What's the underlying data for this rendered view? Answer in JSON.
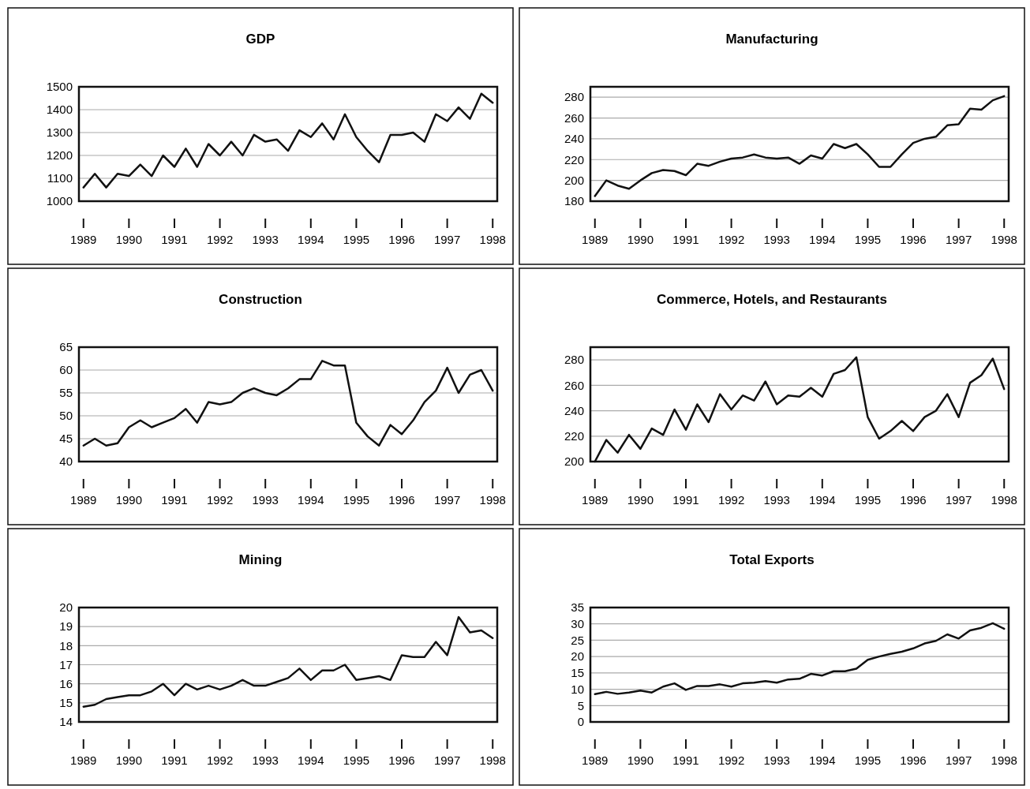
{
  "chart_data": [
    {
      "type": "line",
      "title": "GDP",
      "x": [
        1989,
        1989.25,
        1989.5,
        1989.75,
        1990,
        1990.25,
        1990.5,
        1990.75,
        1991,
        1991.25,
        1991.5,
        1991.75,
        1992,
        1992.25,
        1992.5,
        1992.75,
        1993,
        1993.25,
        1993.5,
        1993.75,
        1994,
        1994.25,
        1994.5,
        1994.75,
        1995,
        1995.25,
        1995.5,
        1995.75,
        1996,
        1996.25,
        1996.5,
        1996.75,
        1997,
        1997.25,
        1997.5,
        1997.75,
        1998
      ],
      "xlim": [
        1988.9,
        1998.1
      ],
      "xticks": [
        1989,
        1990,
        1991,
        1992,
        1993,
        1994,
        1995,
        1996,
        1997,
        1998
      ],
      "ylim": [
        1000,
        1500
      ],
      "yticks": [
        1000,
        1100,
        1200,
        1300,
        1400,
        1500
      ],
      "grid": "y",
      "legend": false,
      "marker": "none",
      "line_style": "solid",
      "series": [
        {
          "color": "#111111",
          "values": [
            1060,
            1120,
            1060,
            1120,
            1110,
            1160,
            1110,
            1200,
            1150,
            1230,
            1150,
            1250,
            1200,
            1260,
            1200,
            1290,
            1260,
            1270,
            1220,
            1310,
            1280,
            1340,
            1270,
            1380,
            1280,
            1220,
            1170,
            1290,
            1290,
            1300,
            1260,
            1380,
            1350,
            1410,
            1360,
            1470,
            1430
          ]
        }
      ]
    },
    {
      "type": "line",
      "title": "Manufacturing",
      "x": [
        1989,
        1989.25,
        1989.5,
        1989.75,
        1990,
        1990.25,
        1990.5,
        1990.75,
        1991,
        1991.25,
        1991.5,
        1991.75,
        1992,
        1992.25,
        1992.5,
        1992.75,
        1993,
        1993.25,
        1993.5,
        1993.75,
        1994,
        1994.25,
        1994.5,
        1994.75,
        1995,
        1995.25,
        1995.5,
        1995.75,
        1996,
        1996.25,
        1996.5,
        1996.75,
        1997,
        1997.25,
        1997.5,
        1997.75,
        1998
      ],
      "xlim": [
        1988.9,
        1998.1
      ],
      "xticks": [
        1989,
        1990,
        1991,
        1992,
        1993,
        1994,
        1995,
        1996,
        1997,
        1998
      ],
      "ylim": [
        180,
        290
      ],
      "yticks": [
        180,
        200,
        220,
        240,
        260,
        280
      ],
      "grid": "y",
      "legend": false,
      "marker": "none",
      "line_style": "solid",
      "series": [
        {
          "color": "#111111",
          "values": [
            185,
            200,
            195,
            192,
            200,
            207,
            210,
            209,
            205,
            216,
            214,
            218,
            221,
            222,
            225,
            222,
            221,
            222,
            216,
            224,
            221,
            235,
            231,
            235,
            225,
            213,
            213,
            225,
            236,
            240,
            242,
            253,
            254,
            269,
            268,
            277,
            281
          ]
        }
      ]
    },
    {
      "type": "line",
      "title": "Construction",
      "x": [
        1989,
        1989.25,
        1989.5,
        1989.75,
        1990,
        1990.25,
        1990.5,
        1990.75,
        1991,
        1991.25,
        1991.5,
        1991.75,
        1992,
        1992.25,
        1992.5,
        1992.75,
        1993,
        1993.25,
        1993.5,
        1993.75,
        1994,
        1994.25,
        1994.5,
        1994.75,
        1995,
        1995.25,
        1995.5,
        1995.75,
        1996,
        1996.25,
        1996.5,
        1996.75,
        1997,
        1997.25,
        1997.5,
        1997.75,
        1998
      ],
      "xlim": [
        1988.9,
        1998.1
      ],
      "xticks": [
        1989,
        1990,
        1991,
        1992,
        1993,
        1994,
        1995,
        1996,
        1997,
        1998
      ],
      "ylim": [
        40,
        65
      ],
      "yticks": [
        40,
        45,
        50,
        55,
        60,
        65
      ],
      "grid": "y",
      "legend": false,
      "marker": "none",
      "line_style": "solid",
      "series": [
        {
          "color": "#111111",
          "values": [
            43.5,
            45,
            43.5,
            44,
            47.5,
            49,
            47.5,
            48.5,
            49.5,
            51.5,
            48.5,
            53,
            52.5,
            53,
            55,
            56,
            55,
            54.5,
            56,
            58,
            58,
            62,
            61,
            61,
            48.5,
            45.5,
            43.5,
            48,
            46,
            49,
            53,
            55.5,
            60.5,
            55,
            59,
            60,
            55.5
          ]
        }
      ]
    },
    {
      "type": "line",
      "title": "Commerce, Hotels, and Restaurants",
      "x": [
        1989,
        1989.25,
        1989.5,
        1989.75,
        1990,
        1990.25,
        1990.5,
        1990.75,
        1991,
        1991.25,
        1991.5,
        1991.75,
        1992,
        1992.25,
        1992.5,
        1992.75,
        1993,
        1993.25,
        1993.5,
        1993.75,
        1994,
        1994.25,
        1994.5,
        1994.75,
        1995,
        1995.25,
        1995.5,
        1995.75,
        1996,
        1996.25,
        1996.5,
        1996.75,
        1997,
        1997.25,
        1997.5,
        1997.75,
        1998
      ],
      "xlim": [
        1988.9,
        1998.1
      ],
      "xticks": [
        1989,
        1990,
        1991,
        1992,
        1993,
        1994,
        1995,
        1996,
        1997,
        1998
      ],
      "ylim": [
        200,
        290
      ],
      "yticks": [
        200,
        220,
        240,
        260,
        280
      ],
      "grid": "y",
      "legend": false,
      "marker": "none",
      "line_style": "solid",
      "series": [
        {
          "color": "#111111",
          "values": [
            200,
            217,
            207,
            221,
            210,
            226,
            221,
            241,
            225,
            245,
            231,
            253,
            241,
            252,
            248,
            263,
            245,
            252,
            251,
            258,
            251,
            269,
            272,
            282,
            235,
            218,
            224,
            232,
            224,
            235,
            240,
            253,
            235,
            262,
            268,
            281,
            257
          ]
        }
      ]
    },
    {
      "type": "line",
      "title": "Mining",
      "x": [
        1989,
        1989.25,
        1989.5,
        1989.75,
        1990,
        1990.25,
        1990.5,
        1990.75,
        1991,
        1991.25,
        1991.5,
        1991.75,
        1992,
        1992.25,
        1992.5,
        1992.75,
        1993,
        1993.25,
        1993.5,
        1993.75,
        1994,
        1994.25,
        1994.5,
        1994.75,
        1995,
        1995.25,
        1995.5,
        1995.75,
        1996,
        1996.25,
        1996.5,
        1996.75,
        1997,
        1997.25,
        1997.5,
        1997.75,
        1998
      ],
      "xlim": [
        1988.9,
        1998.1
      ],
      "xticks": [
        1989,
        1990,
        1991,
        1992,
        1993,
        1994,
        1995,
        1996,
        1997,
        1998
      ],
      "ylim": [
        14,
        20
      ],
      "yticks": [
        14,
        15,
        16,
        17,
        18,
        19,
        20
      ],
      "grid": "y",
      "legend": false,
      "marker": "none",
      "line_style": "solid",
      "series": [
        {
          "color": "#111111",
          "values": [
            14.8,
            14.9,
            15.2,
            15.3,
            15.4,
            15.4,
            15.6,
            16.0,
            15.4,
            16.0,
            15.7,
            15.9,
            15.7,
            15.9,
            16.2,
            15.9,
            15.9,
            16.1,
            16.3,
            16.8,
            16.2,
            16.7,
            16.7,
            17.0,
            16.2,
            16.3,
            16.4,
            16.2,
            17.5,
            17.4,
            17.4,
            18.2,
            17.5,
            19.5,
            18.7,
            18.8,
            18.4
          ]
        }
      ]
    },
    {
      "type": "line",
      "title": "Total Exports",
      "x": [
        1989,
        1989.25,
        1989.5,
        1989.75,
        1990,
        1990.25,
        1990.5,
        1990.75,
        1991,
        1991.25,
        1991.5,
        1991.75,
        1992,
        1992.25,
        1992.5,
        1992.75,
        1993,
        1993.25,
        1993.5,
        1993.75,
        1994,
        1994.25,
        1994.5,
        1994.75,
        1995,
        1995.25,
        1995.5,
        1995.75,
        1996,
        1996.25,
        1996.5,
        1996.75,
        1997,
        1997.25,
        1997.5,
        1997.75,
        1998
      ],
      "xlim": [
        1988.9,
        1998.1
      ],
      "xticks": [
        1989,
        1990,
        1991,
        1992,
        1993,
        1994,
        1995,
        1996,
        1997,
        1998
      ],
      "ylim": [
        0,
        35
      ],
      "yticks": [
        0,
        5,
        10,
        15,
        20,
        25,
        30,
        35
      ],
      "grid": "y",
      "legend": false,
      "marker": "none",
      "line_style": "solid",
      "series": [
        {
          "color": "#111111",
          "values": [
            8.5,
            9.2,
            8.6,
            9,
            9.6,
            9,
            10.8,
            11.8,
            9.8,
            11,
            11,
            11.5,
            10.8,
            11.8,
            12,
            12.5,
            12,
            13,
            13.2,
            14.7,
            14.2,
            15.5,
            15.5,
            16.3,
            19,
            20,
            20.8,
            21.5,
            22.5,
            24,
            24.8,
            26.8,
            25.5,
            28,
            28.8,
            30.2,
            28.5
          ]
        }
      ]
    }
  ]
}
